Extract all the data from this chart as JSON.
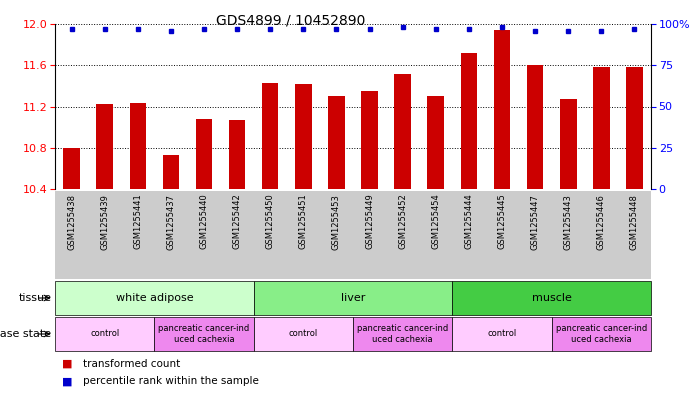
{
  "title": "GDS4899 / 10452890",
  "samples": [
    "GSM1255438",
    "GSM1255439",
    "GSM1255441",
    "GSM1255437",
    "GSM1255440",
    "GSM1255442",
    "GSM1255450",
    "GSM1255451",
    "GSM1255453",
    "GSM1255449",
    "GSM1255452",
    "GSM1255454",
    "GSM1255444",
    "GSM1255445",
    "GSM1255447",
    "GSM1255443",
    "GSM1255446",
    "GSM1255448"
  ],
  "bar_values": [
    10.8,
    11.22,
    11.23,
    10.73,
    11.08,
    11.07,
    11.43,
    11.42,
    11.3,
    11.35,
    11.52,
    11.3,
    11.72,
    11.94,
    11.6,
    11.27,
    11.58,
    11.58
  ],
  "percentile_values": [
    97,
    97,
    97,
    96,
    97,
    97,
    97,
    97,
    97,
    97,
    98,
    97,
    97,
    98,
    96,
    96,
    96,
    97
  ],
  "bar_color": "#cc0000",
  "dot_color": "#0000cc",
  "ylim_left": [
    10.4,
    12.0
  ],
  "ylim_right": [
    0,
    100
  ],
  "yticks_left": [
    10.4,
    10.8,
    11.2,
    11.6,
    12.0
  ],
  "yticks_right": [
    0,
    25,
    50,
    75,
    100
  ],
  "ytick_right_labels": [
    "0",
    "25",
    "50",
    "75",
    "100%"
  ],
  "tissue_groups": [
    {
      "label": "white adipose",
      "start": 0,
      "end": 6,
      "color": "#ccffcc"
    },
    {
      "label": "liver",
      "start": 6,
      "end": 12,
      "color": "#88ee88"
    },
    {
      "label": "muscle",
      "start": 12,
      "end": 18,
      "color": "#44cc44"
    }
  ],
  "disease_groups": [
    {
      "label": "control",
      "start": 0,
      "end": 3,
      "color": "#ffccff"
    },
    {
      "label": "pancreatic cancer-ind\nuced cachexia",
      "start": 3,
      "end": 6,
      "color": "#ee88ee"
    },
    {
      "label": "control",
      "start": 6,
      "end": 9,
      "color": "#ffccff"
    },
    {
      "label": "pancreatic cancer-ind\nuced cachexia",
      "start": 9,
      "end": 12,
      "color": "#ee88ee"
    },
    {
      "label": "control",
      "start": 12,
      "end": 15,
      "color": "#ffccff"
    },
    {
      "label": "pancreatic cancer-ind\nuced cachexia",
      "start": 15,
      "end": 18,
      "color": "#ee88ee"
    }
  ],
  "legend_bar_label": "transformed count",
  "legend_dot_label": "percentile rank within the sample",
  "bar_width": 0.5,
  "background_color": "#ffffff",
  "title_fontsize": 10,
  "tick_fontsize": 8,
  "label_fontsize": 7
}
